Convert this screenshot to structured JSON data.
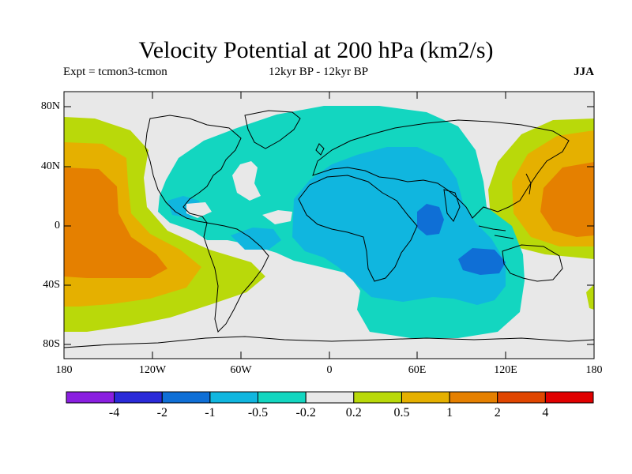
{
  "title": "Velocity Potential at 200 hPa (km2/s)",
  "expt_label": "Expt = tcmon3-tcmon",
  "period_label": "12kyr BP - 12kyr BP",
  "season": "JJA",
  "lat_labels": [
    "80N",
    "40N",
    "0",
    "40S",
    "80S"
  ],
  "lon_labels": [
    "180",
    "120W",
    "60W",
    "0",
    "60E",
    "120E",
    "180"
  ],
  "colorbar": {
    "labels": [
      "-4",
      "-2",
      "-1",
      "-0.5",
      "-0.2",
      "0.2",
      "0.5",
      "1",
      "2",
      "4"
    ],
    "colors": [
      "#8a1fe0",
      "#2a2ad8",
      "#0f6fd6",
      "#10b6df",
      "#13d6c0",
      "#e8e8e8",
      "#b9d90a",
      "#e5b000",
      "#e58000",
      "#e04600",
      "#e00000"
    ]
  },
  "map_colors": {
    "ocean_bg": "#e8e8e8",
    "level_neg_0_2": "#13d6c0",
    "level_neg_0_5": "#10b6df",
    "level_neg_1": "#0f6fd6",
    "level_pos_0_2": "#b9d90a",
    "level_pos_0_5": "#e5b000",
    "level_pos_1": "#e58000",
    "coastline": "#000000"
  }
}
